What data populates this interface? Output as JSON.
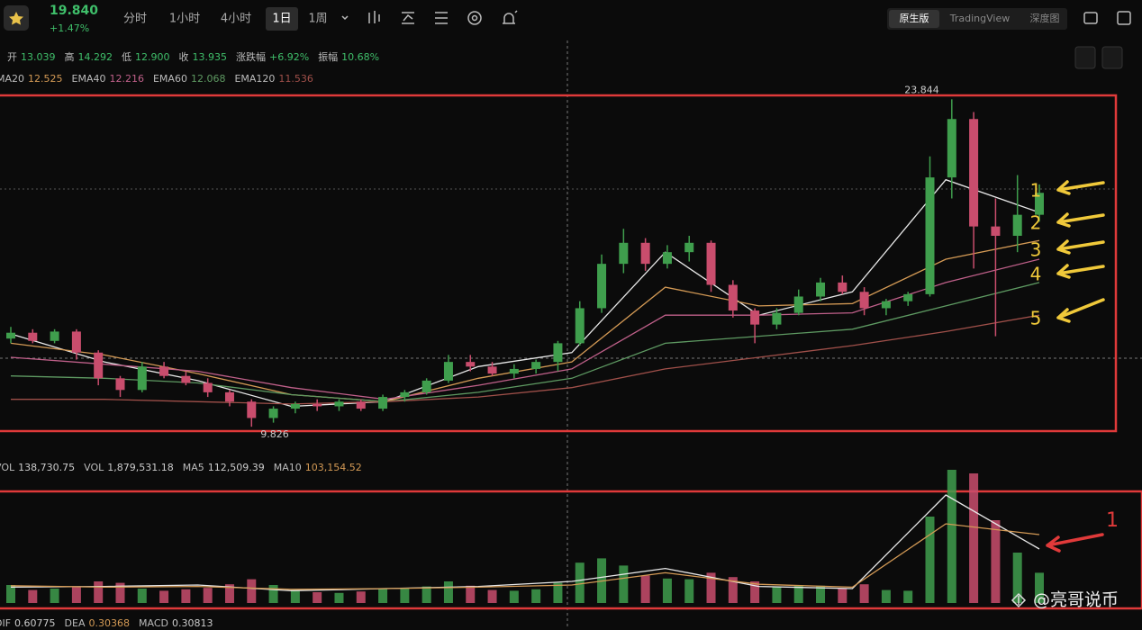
{
  "toolbar": {
    "price": "19.840",
    "change": "+1.47%",
    "tabs": [
      "分时",
      "1小时",
      "4小时",
      "1日",
      "1周"
    ],
    "views": [
      "原生版",
      "TradingView",
      "深度图"
    ]
  },
  "info": {
    "items": [
      [
        "开",
        "13.039"
      ],
      [
        "高",
        "14.292"
      ],
      [
        "低",
        "12.900"
      ],
      [
        "收",
        "13.935"
      ],
      [
        "涨跌幅",
        "+6.92%"
      ],
      [
        "振幅",
        "10.68%"
      ]
    ]
  },
  "ema_legend": {
    "items": [
      [
        "MA20",
        "12.525"
      ],
      [
        "EMA40",
        "12.216"
      ],
      [
        "EMA60",
        "12.068"
      ],
      [
        "EMA120",
        "11.536"
      ]
    ]
  },
  "vol_legend": {
    "items": [
      [
        "VOL",
        "138,730.75"
      ],
      [
        "VOL",
        "1,879,531.18"
      ],
      [
        "MA5",
        "112,509.39"
      ],
      [
        "MA10",
        "103,154.52"
      ]
    ]
  },
  "macd_legend": {
    "items": [
      [
        "DIF",
        "0.60775"
      ],
      [
        "DEA",
        "0.30368"
      ],
      [
        "MACD",
        "0.30813"
      ]
    ]
  },
  "watermark": "@亮哥说币",
  "chart_data": {
    "type": "candlestick",
    "up_color": "#3f9e4d",
    "down_color": "#c94d6d",
    "ylim": [
      9.6,
      24.05
    ],
    "high_label": "23.844",
    "low_label": "9.826",
    "candles": [
      [
        13.6,
        14.1,
        13.4,
        13.85
      ],
      [
        13.85,
        14.0,
        13.4,
        13.5
      ],
      [
        13.5,
        14.0,
        13.4,
        13.9
      ],
      [
        13.9,
        14.0,
        12.7,
        13.0
      ],
      [
        13.0,
        13.1,
        11.6,
        11.9
      ],
      [
        11.9,
        12.0,
        11.1,
        11.4
      ],
      [
        11.4,
        12.6,
        11.3,
        12.4
      ],
      [
        12.4,
        12.6,
        11.9,
        12.0
      ],
      [
        12.0,
        12.2,
        11.6,
        11.7
      ],
      [
        11.7,
        11.9,
        11.1,
        11.3
      ],
      [
        11.3,
        11.4,
        10.7,
        10.9
      ],
      [
        10.9,
        11.0,
        9.826,
        10.2
      ],
      [
        10.2,
        10.7,
        10.0,
        10.6
      ],
      [
        10.6,
        10.9,
        10.4,
        10.8
      ],
      [
        10.8,
        11.0,
        10.5,
        10.7
      ],
      [
        10.7,
        11.0,
        10.5,
        10.9
      ],
      [
        10.9,
        11.0,
        10.5,
        10.6
      ],
      [
        10.6,
        11.2,
        10.5,
        11.1
      ],
      [
        11.1,
        11.4,
        10.9,
        11.3
      ],
      [
        11.3,
        11.9,
        11.2,
        11.8
      ],
      [
        11.8,
        12.9,
        11.7,
        12.6
      ],
      [
        12.6,
        12.9,
        12.2,
        12.4
      ],
      [
        12.4,
        12.6,
        12.0,
        12.1
      ],
      [
        12.1,
        12.5,
        11.9,
        12.3
      ],
      [
        12.3,
        12.7,
        12.1,
        12.6
      ],
      [
        12.6,
        13.5,
        12.2,
        13.4
      ],
      [
        13.4,
        15.2,
        13.3,
        14.9
      ],
      [
        14.9,
        17.2,
        14.7,
        16.8
      ],
      [
        16.8,
        18.3,
        16.4,
        17.7
      ],
      [
        17.7,
        17.9,
        16.5,
        16.8
      ],
      [
        16.8,
        17.6,
        16.6,
        17.3
      ],
      [
        17.3,
        18.0,
        16.9,
        17.7
      ],
      [
        17.7,
        17.8,
        15.6,
        15.9
      ],
      [
        15.9,
        16.1,
        14.5,
        14.8
      ],
      [
        14.8,
        14.9,
        13.4,
        14.2
      ],
      [
        14.2,
        14.9,
        14.0,
        14.7
      ],
      [
        14.7,
        15.7,
        14.6,
        15.4
      ],
      [
        15.4,
        16.2,
        15.2,
        16.0
      ],
      [
        16.0,
        16.3,
        15.5,
        15.6
      ],
      [
        15.6,
        15.8,
        14.6,
        14.9
      ],
      [
        14.9,
        15.3,
        14.6,
        15.2
      ],
      [
        15.2,
        15.6,
        15.0,
        15.5
      ],
      [
        15.5,
        21.4,
        15.4,
        20.5
      ],
      [
        20.5,
        23.844,
        19.6,
        23.0
      ],
      [
        23.0,
        23.3,
        16.6,
        18.4
      ],
      [
        18.4,
        19.6,
        13.7,
        18.0
      ],
      [
        18.0,
        20.6,
        17.3,
        18.9
      ],
      [
        18.9,
        20.2,
        18.6,
        19.84
      ]
    ],
    "lines": [
      {
        "name": "MA",
        "color": "#e8e8e8",
        "values": [
          13.8,
          12.6,
          11.8,
          10.7,
          10.9,
          12.4,
          13.0,
          17.3,
          14.6,
          15.6,
          20.4,
          19.0
        ]
      },
      {
        "name": "MA20",
        "color": "#d49a55",
        "values": [
          13.4,
          12.9,
          12.1,
          11.2,
          10.9,
          11.9,
          12.6,
          15.8,
          15.0,
          15.1,
          17.0,
          17.8
        ]
      },
      {
        "name": "EMA40",
        "color": "#c0608a",
        "values": [
          12.8,
          12.5,
          12.2,
          11.5,
          11.0,
          11.6,
          12.3,
          14.6,
          14.6,
          14.7,
          16.0,
          17.0
        ]
      },
      {
        "name": "EMA60",
        "color": "#5e9a62",
        "values": [
          12.0,
          11.9,
          11.7,
          11.2,
          10.9,
          11.3,
          11.9,
          13.4,
          13.7,
          14.0,
          15.0,
          16.0
        ]
      },
      {
        "name": "EMA120",
        "color": "#a0504a",
        "values": [
          11.0,
          11.0,
          10.9,
          10.8,
          10.9,
          11.1,
          11.5,
          12.3,
          12.8,
          13.3,
          13.9,
          14.6
        ]
      }
    ],
    "vol_ylim": [
      0,
      2000000
    ],
    "volumes": [
      250000,
      180000,
      200000,
      220000,
      300000,
      280000,
      200000,
      170000,
      190000,
      210000,
      260000,
      330000,
      250000,
      180000,
      150000,
      140000,
      160000,
      200000,
      210000,
      230000,
      300000,
      240000,
      180000,
      170000,
      190000,
      280000,
      560000,
      620000,
      520000,
      380000,
      340000,
      330000,
      420000,
      360000,
      300000,
      220000,
      250000,
      240000,
      200000,
      260000,
      180000,
      170000,
      1200000,
      1850000,
      1800000,
      1150000,
      700000,
      420000
    ],
    "vol_lines": [
      {
        "name": "MA5",
        "color": "#e8e8e8",
        "values": [
          220000,
          230000,
          250000,
          170000,
          200000,
          230000,
          300000,
          480000,
          230000,
          200000,
          1500000,
          750000
        ]
      },
      {
        "name": "MA10",
        "color": "#d49a55",
        "values": [
          240000,
          220000,
          230000,
          190000,
          200000,
          220000,
          250000,
          420000,
          260000,
          220000,
          1100000,
          950000
        ]
      }
    ],
    "annotations": [
      "1",
      "2",
      "3",
      "4",
      "5"
    ],
    "vol_annotation": "1"
  }
}
